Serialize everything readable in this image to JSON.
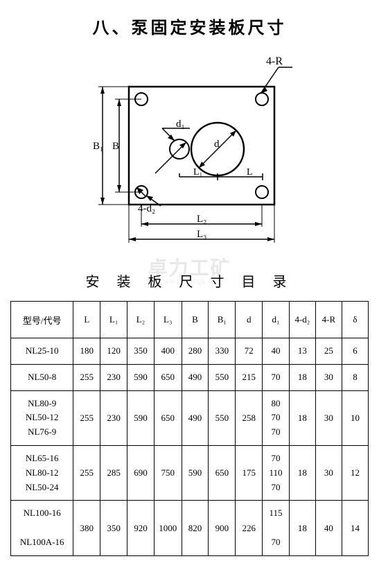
{
  "title": "八、泵固定安装板尺寸",
  "subtitle": "安 装 板 尺 寸 目 录",
  "watermark": "卓力工矿",
  "watermark_sub": "www.zhuoligk.com",
  "diagram": {
    "labels": {
      "corner_callout": "4-R",
      "top_dim": "d₁",
      "center_dim": "d",
      "left_outer": "B₁",
      "left_inner": "B",
      "bottom_hole": "4-d₂",
      "inner_h1": "L₁",
      "inner_h2": "L",
      "bottom_dim1": "L₂",
      "bottom_dim2": "L₃"
    },
    "colors": {
      "stroke": "#000000",
      "fill": "#ffffff"
    }
  },
  "table": {
    "columns": [
      "型号/代号",
      "L",
      "L₁",
      "L₂",
      "L₃",
      "B",
      "B₁",
      "d",
      "d₁",
      "4-d₂",
      "4-R",
      "δ"
    ],
    "rows": [
      {
        "model": "NL25-10",
        "L": "180",
        "L1": "120",
        "L2": "350",
        "L3": "400",
        "B": "280",
        "B1": "330",
        "d": "72",
        "d1": "40",
        "d2": "13",
        "R": "25",
        "delta": "6"
      },
      {
        "model": "NL50-8",
        "L": "255",
        "L1": "230",
        "L2": "590",
        "L3": "650",
        "B": "490",
        "B1": "550",
        "d": "215",
        "d1": "70",
        "d2": "18",
        "R": "30",
        "delta": "8"
      },
      {
        "model": "NL80-9\nNL50-12\nNL76-9",
        "L": "255",
        "L1": "230",
        "L2": "590",
        "L3": "650",
        "B": "490",
        "B1": "550",
        "d": "258",
        "d1": "80\n70\n70",
        "d2": "18",
        "R": "30",
        "delta": "10"
      },
      {
        "model": "NL65-16\nNL80-12\nNL50-24",
        "L": "255",
        "L1": "285",
        "L2": "690",
        "L3": "750",
        "B": "590",
        "B1": "650",
        "d": "175",
        "d1": "70\n110\n70",
        "d2": "18",
        "R": "30",
        "delta": "12"
      },
      {
        "model": "NL100-16\n\nNL100A-16",
        "L": "380",
        "L1": "350",
        "L2": "920",
        "L3": "1000",
        "B": "820",
        "B1": "900",
        "d": "226",
        "d1": "115\n\n70",
        "d2": "18",
        "R": "40",
        "delta": "14"
      }
    ]
  }
}
